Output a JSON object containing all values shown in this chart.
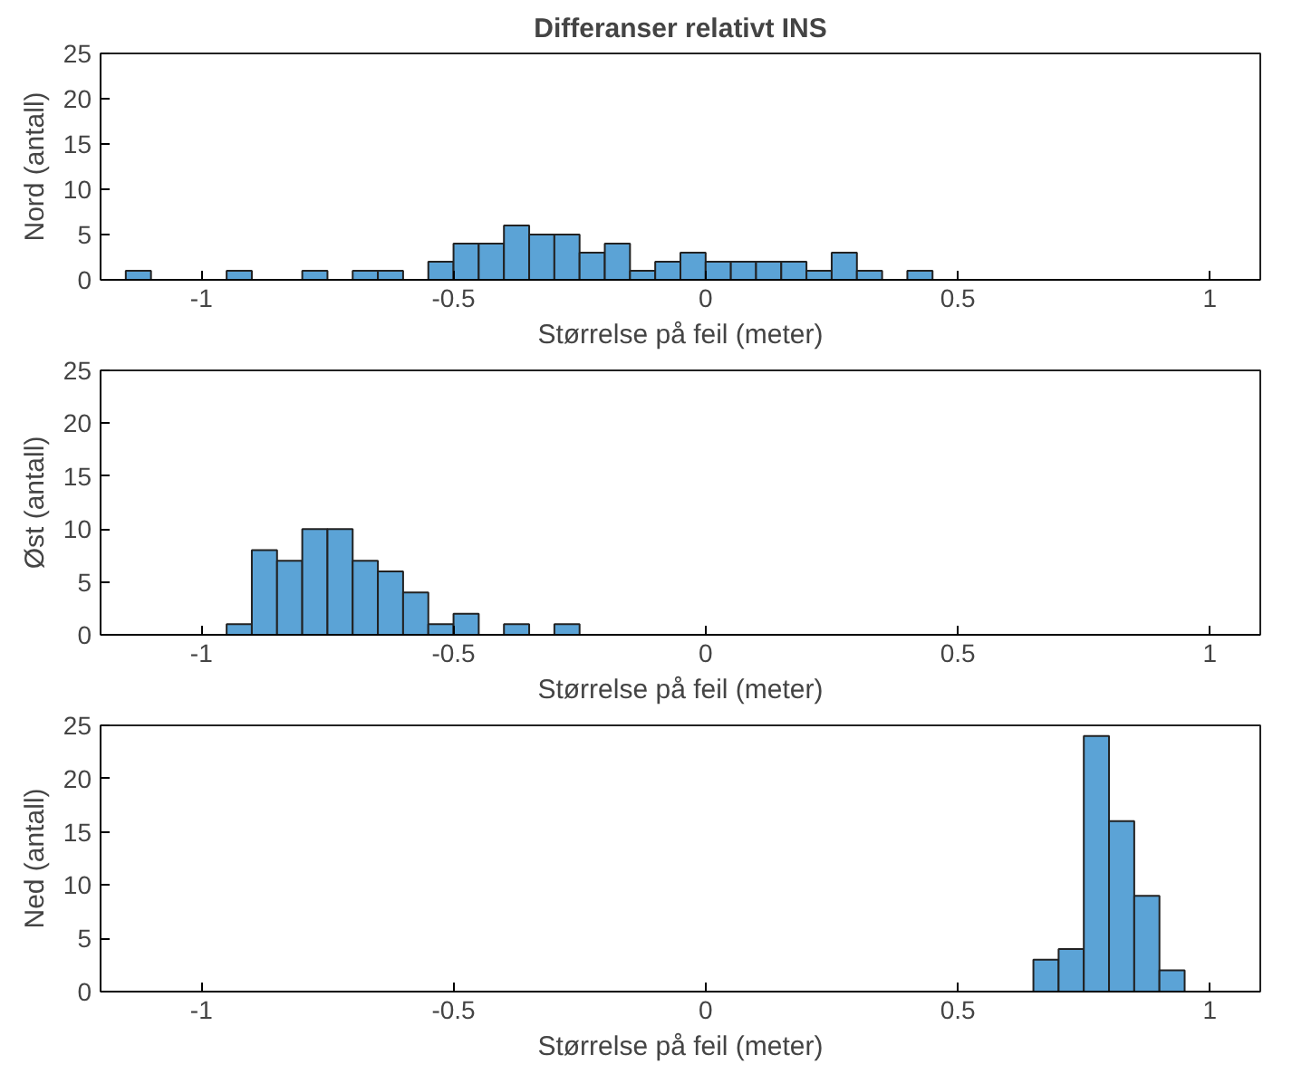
{
  "chart_data": [
    {
      "type": "histogram",
      "title": "Differanser relativt INS",
      "xlabel": "Størrelse på feil (meter)",
      "ylabel": "Nord (antall)",
      "color": "#5ba3d6",
      "bins": [
        -1.15,
        -1.1,
        -1.05,
        -1.0,
        -0.95,
        -0.9,
        -0.85,
        -0.8,
        -0.75,
        -0.7,
        -0.65,
        -0.6,
        -0.55,
        -0.5,
        -0.45,
        -0.4,
        -0.35,
        -0.3,
        -0.25,
        -0.2,
        -0.15,
        -0.1,
        -0.05,
        0,
        0.05,
        0.1,
        0.15,
        0.2,
        0.25,
        0.3,
        0.35,
        0.4,
        0.45
      ],
      "values": [
        1,
        0,
        0,
        0,
        1,
        0,
        0,
        1,
        0,
        1,
        1,
        0,
        2,
        4,
        4,
        6,
        5,
        5,
        3,
        4,
        1,
        2,
        3,
        2,
        2,
        2,
        2,
        1,
        3,
        1,
        0,
        1
      ],
      "xlim": [
        -1.2,
        1.1
      ],
      "ylim": [
        0,
        25
      ],
      "xticks": [
        -1,
        -0.5,
        0,
        0.5,
        1
      ],
      "yticks": [
        0,
        5,
        10,
        15,
        20,
        25
      ],
      "grid": false
    },
    {
      "type": "histogram",
      "xlabel": "Størrelse på feil (meter)",
      "ylabel": "Øst (antall)",
      "color": "#5ba3d6",
      "bins": [
        -0.95,
        -0.9,
        -0.85,
        -0.8,
        -0.75,
        -0.7,
        -0.65,
        -0.6,
        -0.55,
        -0.5,
        -0.45,
        -0.4,
        -0.35,
        -0.3,
        -0.25
      ],
      "values": [
        1,
        8,
        7,
        10,
        10,
        7,
        6,
        4,
        1,
        2,
        0,
        1,
        0,
        1
      ],
      "xlim": [
        -1.2,
        1.1
      ],
      "ylim": [
        0,
        25
      ],
      "xticks": [
        -1,
        -0.5,
        0,
        0.5,
        1
      ],
      "yticks": [
        0,
        5,
        10,
        15,
        20,
        25
      ],
      "grid": false
    },
    {
      "type": "histogram",
      "xlabel": "Størrelse på feil (meter)",
      "ylabel": "Ned (antall)",
      "color": "#5ba3d6",
      "bins": [
        0.65,
        0.7,
        0.75,
        0.8,
        0.85,
        0.9,
        0.95
      ],
      "values": [
        3,
        4,
        24,
        16,
        9,
        2
      ],
      "xlim": [
        -1.2,
        1.1
      ],
      "ylim": [
        0,
        25
      ],
      "xticks": [
        -1,
        -0.5,
        0,
        0.5,
        1
      ],
      "yticks": [
        0,
        5,
        10,
        15,
        20,
        25
      ],
      "grid": false
    }
  ]
}
